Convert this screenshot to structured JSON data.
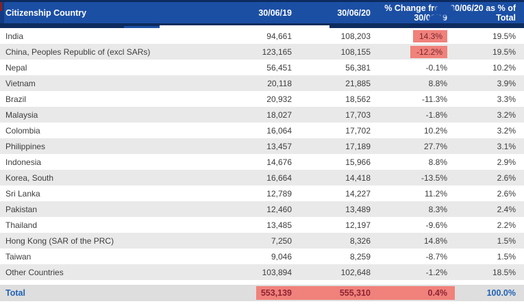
{
  "colors": {
    "header_blue": "#1B4FA4",
    "navy": "#0D2B5E",
    "row_alt": "#E9E9E9",
    "total_bg": "#DEDEDE",
    "highlight": "#F0817B",
    "blue_text": "#2062B4",
    "body_text": "#3C3C3C",
    "highlight_text": "#78262F",
    "highlight_text_total": "#8E2433"
  },
  "chart_data": {
    "type": "table",
    "title": "",
    "columns": [
      "Citizenship Country",
      "30/06/19",
      "30/06/20",
      "% Change from 30/06/19",
      "30/06/20 as % of Total"
    ],
    "rows": [
      {
        "country": "India",
        "v2019": "94,661",
        "v2020": "108,203",
        "pct_change": "14.3%",
        "pct_of_total": "19.5%",
        "change_highlight": true
      },
      {
        "country": "China, Peoples Republic of (excl SARs)",
        "v2019": "123,165",
        "v2020": "108,155",
        "pct_change": "-12.2%",
        "pct_of_total": "19.5%",
        "change_highlight": true
      },
      {
        "country": "Nepal",
        "v2019": "56,451",
        "v2020": "56,381",
        "pct_change": "-0.1%",
        "pct_of_total": "10.2%",
        "change_highlight": false
      },
      {
        "country": "Vietnam",
        "v2019": "20,118",
        "v2020": "21,885",
        "pct_change": "8.8%",
        "pct_of_total": "3.9%",
        "change_highlight": false
      },
      {
        "country": "Brazil",
        "v2019": "20,932",
        "v2020": "18,562",
        "pct_change": "-11.3%",
        "pct_of_total": "3.3%",
        "change_highlight": false
      },
      {
        "country": "Malaysia",
        "v2019": "18,027",
        "v2020": "17,703",
        "pct_change": "-1.8%",
        "pct_of_total": "3.2%",
        "change_highlight": false
      },
      {
        "country": "Colombia",
        "v2019": "16,064",
        "v2020": "17,702",
        "pct_change": "10.2%",
        "pct_of_total": "3.2%",
        "change_highlight": false
      },
      {
        "country": "Philippines",
        "v2019": "13,457",
        "v2020": "17,189",
        "pct_change": "27.7%",
        "pct_of_total": "3.1%",
        "change_highlight": false
      },
      {
        "country": "Indonesia",
        "v2019": "14,676",
        "v2020": "15,966",
        "pct_change": "8.8%",
        "pct_of_total": "2.9%",
        "change_highlight": false
      },
      {
        "country": "Korea, South",
        "v2019": "16,664",
        "v2020": "14,418",
        "pct_change": "-13.5%",
        "pct_of_total": "2.6%",
        "change_highlight": false
      },
      {
        "country": "Sri Lanka",
        "v2019": "12,789",
        "v2020": "14,227",
        "pct_change": "11.2%",
        "pct_of_total": "2.6%",
        "change_highlight": false
      },
      {
        "country": "Pakistan",
        "v2019": "12,460",
        "v2020": "13,489",
        "pct_change": "8.3%",
        "pct_of_total": "2.4%",
        "change_highlight": false
      },
      {
        "country": "Thailand",
        "v2019": "13,485",
        "v2020": "12,197",
        "pct_change": "-9.6%",
        "pct_of_total": "2.2%",
        "change_highlight": false
      },
      {
        "country": "Hong Kong (SAR of the PRC)",
        "v2019": "7,250",
        "v2020": "8,326",
        "pct_change": "14.8%",
        "pct_of_total": "1.5%",
        "change_highlight": false
      },
      {
        "country": "Taiwan",
        "v2019": "9,046",
        "v2020": "8,259",
        "pct_change": "-8.7%",
        "pct_of_total": "1.5%",
        "change_highlight": false
      },
      {
        "country": "Other Countries",
        "v2019": "103,894",
        "v2020": "102,648",
        "pct_change": "-1.2%",
        "pct_of_total": "18.5%",
        "change_highlight": false
      }
    ],
    "total": {
      "label": "Total",
      "v2019": "553,139",
      "v2020": "555,310",
      "pct_change": "0.4%",
      "pct_of_total": "100.0%",
      "highlight": true
    }
  }
}
